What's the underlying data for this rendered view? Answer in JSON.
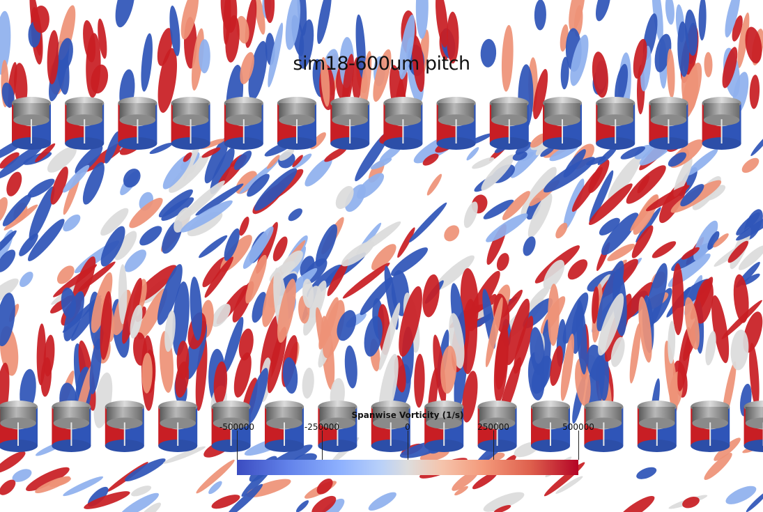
{
  "title": "sim18-600um pitch",
  "colorbar": {
    "title": "Spanwise Vorticity (1/s)",
    "ticks": [
      {
        "label": "-500000",
        "value": -500000
      },
      {
        "label": "-250000",
        "value": -250000
      },
      {
        "label": "0",
        "value": 0
      },
      {
        "label": "250000",
        "value": 250000
      },
      {
        "label": "500000",
        "value": 500000
      }
    ],
    "range": [
      -500000,
      500000
    ],
    "colormap": [
      "#3b4cc0",
      "#dddddd",
      "#b40426"
    ]
  },
  "colors": {
    "red": "#c81e24",
    "blue": "#2f55b8",
    "salmon": "#ee9277",
    "light_blue": "#8fb0ee",
    "pale": "#dcdcdc",
    "cylinder": "#9a9a9a"
  },
  "scene": {
    "top_row_cylinders": 14,
    "bottom_row_cylinders": 15
  }
}
